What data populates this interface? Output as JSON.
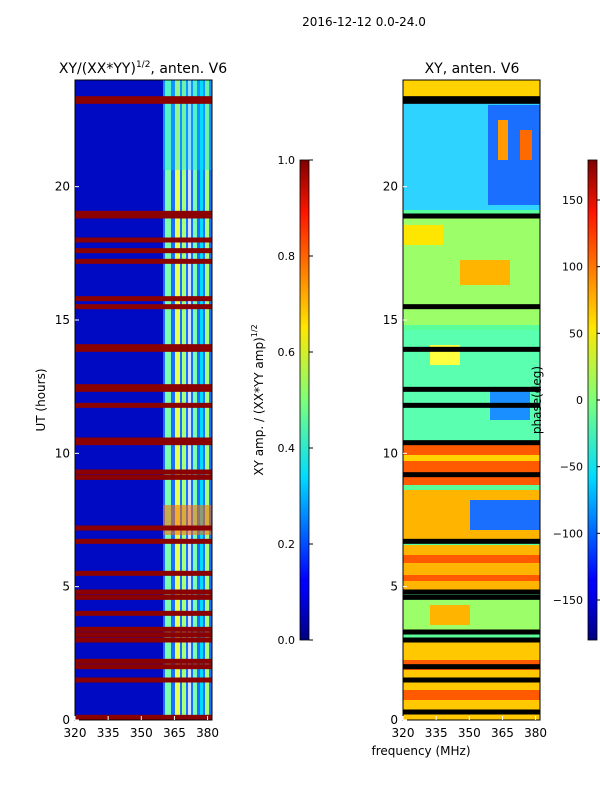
{
  "figure_title": "2016-12-12 0.0-24.0",
  "chart_data": [
    {
      "type": "heatmap",
      "title": "XY/(XX*YY)^{1/2}, anten. V6",
      "title_main": "XY/(XX*YY)",
      "title_sup": "1/2",
      "title_tail": ", anten. V6",
      "xlabel": "",
      "ylabel": "UT (hours)",
      "xlim": [
        320,
        382
      ],
      "ylim": [
        0,
        24
      ],
      "xticks": [
        320,
        335,
        350,
        365,
        380
      ],
      "yticks": [
        0,
        5,
        10,
        15,
        20
      ],
      "rfi_band_start_mhz": 360,
      "flagged_rows_utc": [
        0.1,
        1.5,
        2.0,
        2.2,
        3.0,
        3.2,
        3.4,
        4.0,
        4.6,
        4.8,
        5.5,
        6.7,
        7.2,
        9.1,
        9.3,
        10.4,
        10.5,
        11.8,
        12.4,
        12.5,
        13.9,
        14.0,
        15.5,
        15.8,
        17.2,
        17.6,
        18.0,
        18.9,
        19.0,
        23.2,
        23.3
      ],
      "colorbar": {
        "label": "XY amp. / (XX*YY amp)^{1/2}",
        "label_main": "XY amp. / (XX*YY amp)",
        "label_sup": "1/2",
        "range": [
          0.0,
          1.0
        ],
        "ticks": [
          "0.0",
          "0.2",
          "0.4",
          "0.6",
          "0.8",
          "1.0"
        ]
      }
    },
    {
      "type": "heatmap",
      "title": "XY, anten. V6",
      "xlabel": "frequency (MHz)",
      "ylabel": "",
      "xlim": [
        320,
        382
      ],
      "ylim": [
        0,
        24
      ],
      "xticks": [
        320,
        335,
        350,
        365,
        380
      ],
      "yticks": [
        0,
        5,
        10,
        15,
        20
      ],
      "flagged_rows_utc": [
        0.3,
        1.5,
        2.0,
        3.0,
        3.3,
        4.6,
        4.8,
        6.7,
        9.2,
        10.4,
        11.8,
        12.4,
        13.9,
        15.5,
        18.9,
        23.2,
        23.3
      ],
      "colorbar": {
        "label": "phase(deg)",
        "range": [
          -180,
          180
        ],
        "ticks": [
          "150",
          "100",
          "50",
          "0",
          "−50",
          "−100",
          "−150"
        ]
      }
    }
  ]
}
